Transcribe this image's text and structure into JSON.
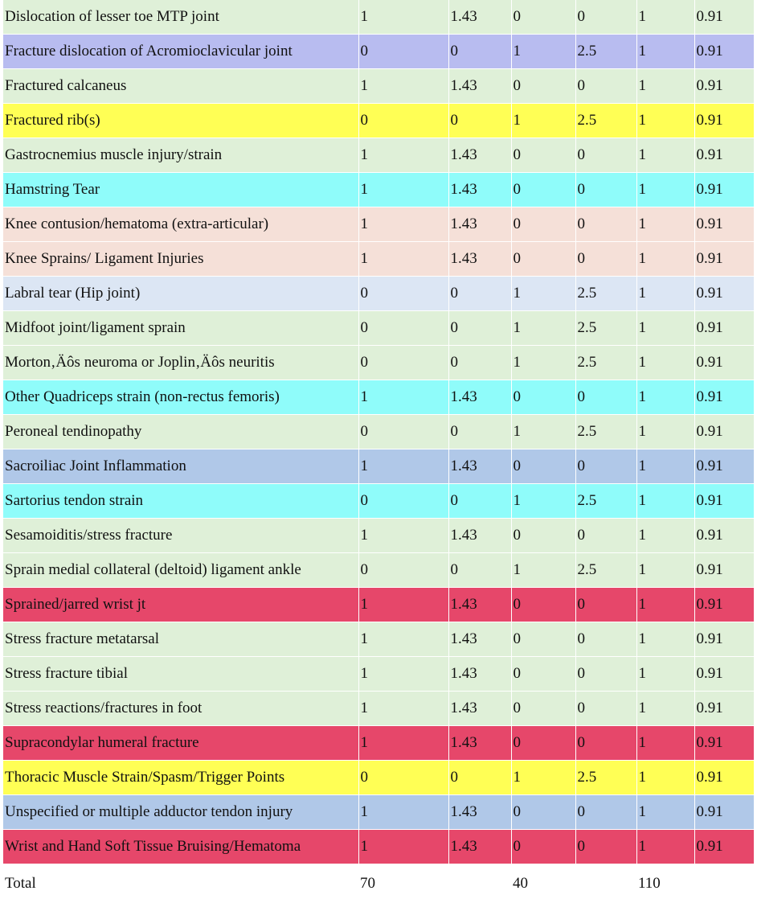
{
  "colors": {
    "green": "#dff0d8",
    "lavender": "#b8bcf0",
    "yellow": "#ffff55",
    "cyan": "#8ffcfa",
    "peach": "#f5e0d8",
    "lightblue": "#dce6f4",
    "steelblue": "#b0c8e8",
    "red": "#e6476a"
  },
  "rows": [
    {
      "name": "Dislocation of lesser toe MTP joint",
      "a": "1",
      "b": "1.43",
      "c": "0",
      "d": "0",
      "e": "1",
      "f": "0.91",
      "color": "green"
    },
    {
      "name": "Fracture dislocation of Acromioclavicular joint",
      "a": "0",
      "b": "0",
      "c": "1",
      "d": "2.5",
      "e": "1",
      "f": "0.91",
      "color": "lavender"
    },
    {
      "name": "Fractured calcaneus",
      "a": "1",
      "b": "1.43",
      "c": "0",
      "d": "0",
      "e": "1",
      "f": "0.91",
      "color": "green"
    },
    {
      "name": "Fractured rib(s)",
      "a": "0",
      "b": "0",
      "c": "1",
      "d": "2.5",
      "e": "1",
      "f": "0.91",
      "color": "yellow"
    },
    {
      "name": "Gastrocnemius muscle injury/strain",
      "a": "1",
      "b": "1.43",
      "c": "0",
      "d": "0",
      "e": "1",
      "f": "0.91",
      "color": "green"
    },
    {
      "name": "Hamstring Tear",
      "a": "1",
      "b": "1.43",
      "c": "0",
      "d": "0",
      "e": "1",
      "f": "0.91",
      "color": "cyan"
    },
    {
      "name": "Knee contusion/hematoma (extra-articular)",
      "a": "1",
      "b": "1.43",
      "c": "0",
      "d": "0",
      "e": "1",
      "f": "0.91",
      "color": "peach"
    },
    {
      "name": "Knee Sprains/ Ligament Injuries",
      "a": "1",
      "b": "1.43",
      "c": "0",
      "d": "0",
      "e": "1",
      "f": "0.91",
      "color": "peach"
    },
    {
      "name": "Labral tear (Hip joint)",
      "a": "0",
      "b": "0",
      "c": "1",
      "d": "2.5",
      "e": "1",
      "f": "0.91",
      "color": "lightblue"
    },
    {
      "name": "Midfoot joint/ligament sprain",
      "a": "0",
      "b": "0",
      "c": "1",
      "d": "2.5",
      "e": "1",
      "f": "0.91",
      "color": "green"
    },
    {
      "name": "Morton‚Äôs neuroma or Joplin‚Äôs neuritis",
      "a": "0",
      "b": "0",
      "c": "1",
      "d": "2.5",
      "e": "1",
      "f": "0.91",
      "color": "green"
    },
    {
      "name": "Other Quadriceps strain (non-rectus femoris)",
      "a": "1",
      "b": "1.43",
      "c": "0",
      "d": "0",
      "e": "1",
      "f": "0.91",
      "color": "cyan"
    },
    {
      "name": "Peroneal tendinopathy",
      "a": "0",
      "b": "0",
      "c": "1",
      "d": "2.5",
      "e": "1",
      "f": "0.91",
      "color": "green"
    },
    {
      "name": "Sacroiliac Joint Inflammation",
      "a": "1",
      "b": "1.43",
      "c": "0",
      "d": "0",
      "e": "1",
      "f": "0.91",
      "color": "steelblue"
    },
    {
      "name": "Sartorius tendon strain",
      "a": "0",
      "b": "0",
      "c": "1",
      "d": "2.5",
      "e": "1",
      "f": "0.91",
      "color": "cyan"
    },
    {
      "name": "Sesamoiditis/stress fracture",
      "a": "1",
      "b": "1.43",
      "c": "0",
      "d": "0",
      "e": "1",
      "f": "0.91",
      "color": "green"
    },
    {
      "name": "Sprain medial collateral (deltoid) ligament ankle",
      "a": "0",
      "b": "0",
      "c": "1",
      "d": "2.5",
      "e": "1",
      "f": "0.91",
      "color": "green"
    },
    {
      "name": "Sprained/jarred wrist jt",
      "a": "1",
      "b": "1.43",
      "c": "0",
      "d": "0",
      "e": "1",
      "f": "0.91",
      "color": "red"
    },
    {
      "name": "Stress fracture metatarsal",
      "a": "1",
      "b": "1.43",
      "c": "0",
      "d": "0",
      "e": "1",
      "f": "0.91",
      "color": "green"
    },
    {
      "name": "Stress fracture tibial",
      "a": "1",
      "b": "1.43",
      "c": "0",
      "d": "0",
      "e": "1",
      "f": "0.91",
      "color": "green"
    },
    {
      "name": "Stress reactions/fractures in foot",
      "a": "1",
      "b": "1.43",
      "c": "0",
      "d": "0",
      "e": "1",
      "f": "0.91",
      "color": "green"
    },
    {
      "name": "Supracondylar humeral fracture",
      "a": "1",
      "b": "1.43",
      "c": "0",
      "d": "0",
      "e": "1",
      "f": "0.91",
      "color": "red"
    },
    {
      "name": "Thoracic Muscle Strain/Spasm/Trigger Points",
      "a": "0",
      "b": "0",
      "c": "1",
      "d": "2.5",
      "e": "1",
      "f": "0.91",
      "color": "yellow"
    },
    {
      "name": "Unspecified or multiple adductor tendon injury",
      "a": "1",
      "b": "1.43",
      "c": "0",
      "d": "0",
      "e": "1",
      "f": "0.91",
      "color": "steelblue"
    },
    {
      "name": "Wrist and Hand Soft Tissue Bruising/Hematoma",
      "a": "1",
      "b": "1.43",
      "c": "0",
      "d": "0",
      "e": "1",
      "f": "0.91",
      "color": "red"
    }
  ],
  "total": {
    "label": "Total",
    "a": "70",
    "b": "",
    "c": "40",
    "d": "",
    "e": "110",
    "f": ""
  }
}
